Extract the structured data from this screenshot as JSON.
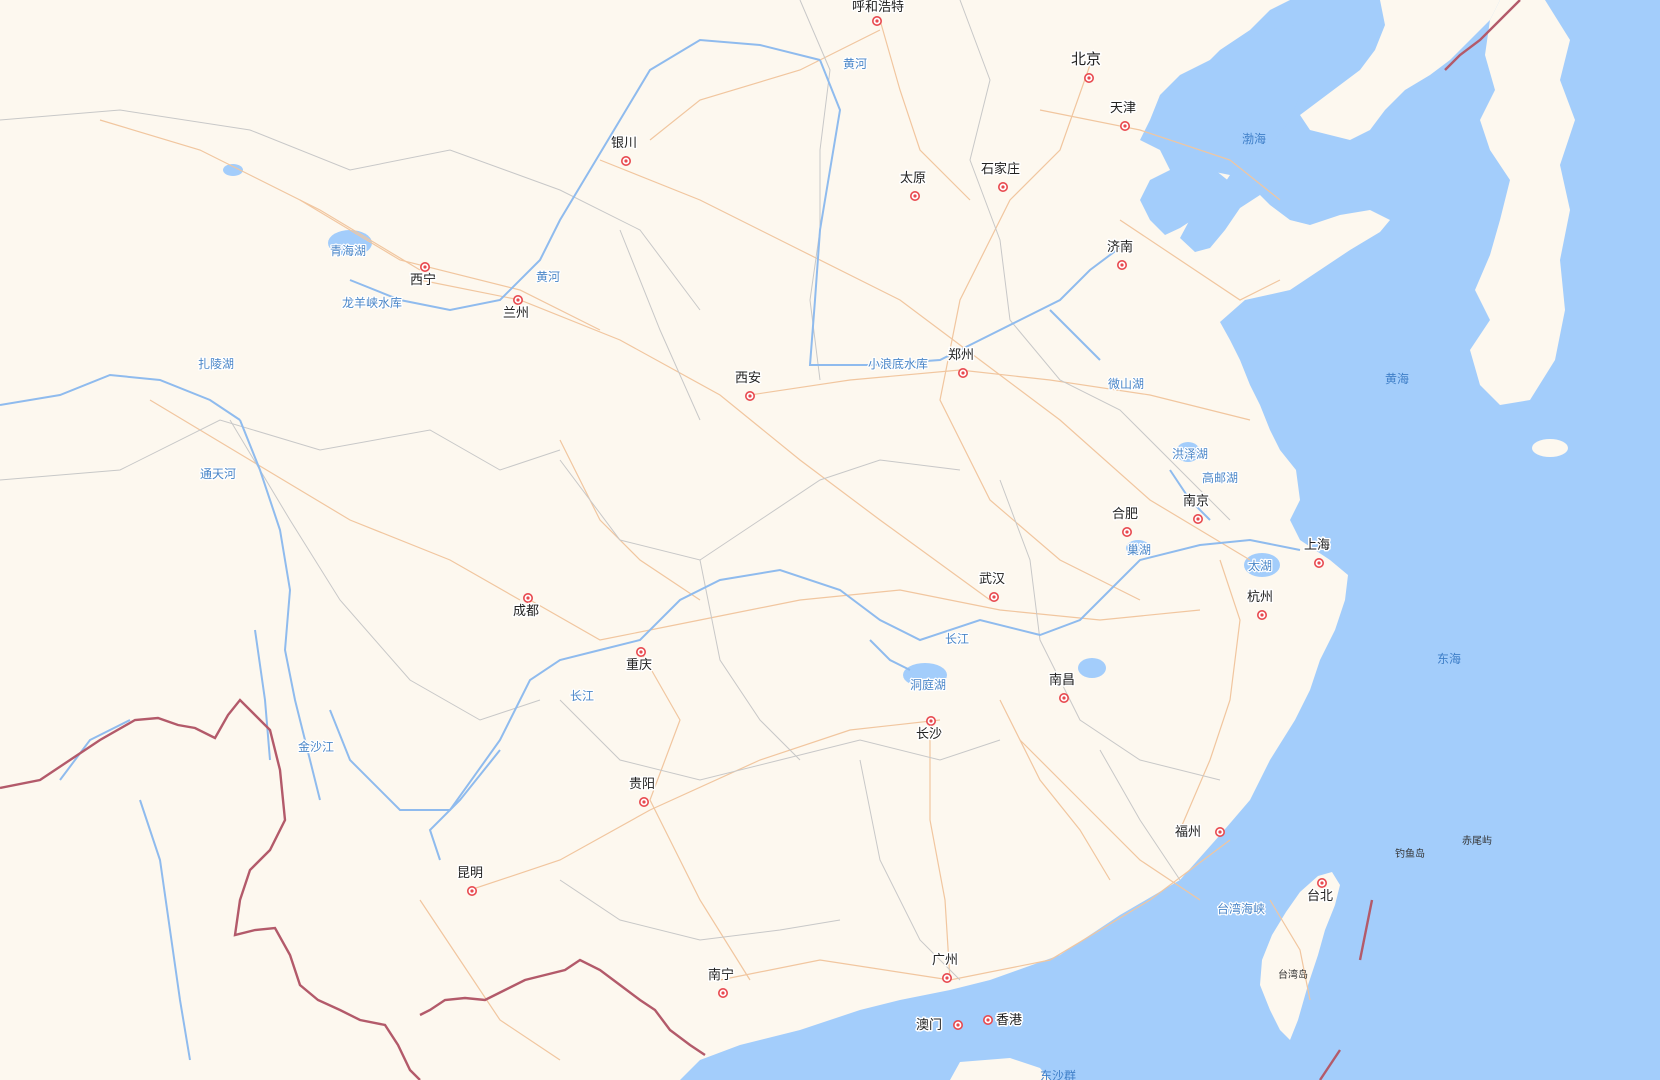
{
  "colors": {
    "land": "#fdf8ef",
    "sea": "#a3cdfb",
    "river": "#8fbbee",
    "road": "#f1c69f",
    "admin_border": "#c8c8c8",
    "national_border": "#b35a6a",
    "city_marker": "#e8494f"
  },
  "cities": [
    {
      "id": "hohhot",
      "name": "呼和浩特"
    },
    {
      "id": "beijing",
      "name": "北京",
      "capital": true
    },
    {
      "id": "tianjin",
      "name": "天津"
    },
    {
      "id": "yinchuan",
      "name": "银川"
    },
    {
      "id": "taiyuan",
      "name": "太原"
    },
    {
      "id": "shijiazhuang",
      "name": "石家庄"
    },
    {
      "id": "jinan",
      "name": "济南"
    },
    {
      "id": "xining",
      "name": "西宁"
    },
    {
      "id": "lanzhou",
      "name": "兰州"
    },
    {
      "id": "zhengzhou",
      "name": "郑州"
    },
    {
      "id": "xian",
      "name": "西安"
    },
    {
      "id": "hefei",
      "name": "合肥"
    },
    {
      "id": "nanjing",
      "name": "南京"
    },
    {
      "id": "shanghai",
      "name": "上海"
    },
    {
      "id": "hangzhou",
      "name": "杭州"
    },
    {
      "id": "wuhan",
      "name": "武汉"
    },
    {
      "id": "chengdu",
      "name": "成都"
    },
    {
      "id": "chongqing",
      "name": "重庆"
    },
    {
      "id": "nanchang",
      "name": "南昌"
    },
    {
      "id": "changsha",
      "name": "长沙"
    },
    {
      "id": "guiyang",
      "name": "贵阳"
    },
    {
      "id": "fuzhou",
      "name": "福州"
    },
    {
      "id": "taipei",
      "name": "台北"
    },
    {
      "id": "kunming",
      "name": "昆明"
    },
    {
      "id": "nanning",
      "name": "南宁"
    },
    {
      "id": "guangzhou",
      "name": "广州"
    },
    {
      "id": "macau",
      "name": "澳门"
    },
    {
      "id": "hongkong",
      "name": "香港"
    }
  ],
  "water_labels": [
    {
      "id": "yellow-river-north",
      "name": "黄河"
    },
    {
      "id": "yellow-river-lanzhou",
      "name": "黄河"
    },
    {
      "id": "qinghai-lake",
      "name": "青海湖"
    },
    {
      "id": "longyangxia",
      "name": "龙羊峡水库"
    },
    {
      "id": "zhaling-lake",
      "name": "扎陵湖"
    },
    {
      "id": "tongtian-river",
      "name": "通天河"
    },
    {
      "id": "xiaolangdi",
      "name": "小浪底水库"
    },
    {
      "id": "weishan-lake",
      "name": "微山湖"
    },
    {
      "id": "hongze-lake",
      "name": "洪泽湖"
    },
    {
      "id": "gaoyou-lake",
      "name": "高邮湖"
    },
    {
      "id": "chao-lake",
      "name": "巢湖"
    },
    {
      "id": "tai-lake",
      "name": "太湖"
    },
    {
      "id": "yangtze-middle",
      "name": "长江"
    },
    {
      "id": "yangtze-upper",
      "name": "长江"
    },
    {
      "id": "dongting-lake",
      "name": "洞庭湖"
    },
    {
      "id": "jinsha-river",
      "name": "金沙江"
    },
    {
      "id": "taiwan-strait",
      "name": "台湾海峡"
    }
  ],
  "sea_labels": [
    {
      "id": "bohai",
      "name": "渤海"
    },
    {
      "id": "yellow-sea",
      "name": "黄海"
    },
    {
      "id": "east-china-sea",
      "name": "东海"
    },
    {
      "id": "south-china-sea",
      "name": "东沙群"
    }
  ],
  "island_labels": [
    {
      "id": "diaoyu",
      "name": "钓鱼岛"
    },
    {
      "id": "chiwei",
      "name": "赤尾屿"
    },
    {
      "id": "taiwan-island",
      "name": "台湾岛"
    }
  ]
}
